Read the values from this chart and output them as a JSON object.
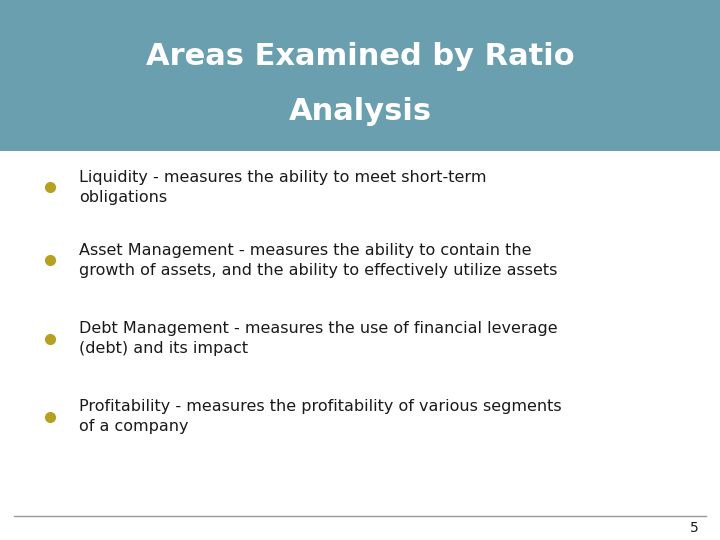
{
  "title_line1": "Areas Examined by Ratio",
  "title_line2": "Analysis",
  "title_bg_color": "#6a9fb0",
  "title_text_color": "#ffffff",
  "bg_color": "#ffffff",
  "bullet_color": "#b5a020",
  "text_color": "#1a1a1a",
  "footer_line_color": "#999999",
  "page_number": "5",
  "bullets": [
    "Liquidity - measures the ability to meet short-term\nobligations",
    "Asset Management - measures the ability to contain the\ngrowth of assets, and the ability to effectively utilize assets",
    "Debt Management - measures the use of financial leverage\n(debt) and its impact",
    "Profitability - measures the profitability of various segments\nof a company"
  ]
}
